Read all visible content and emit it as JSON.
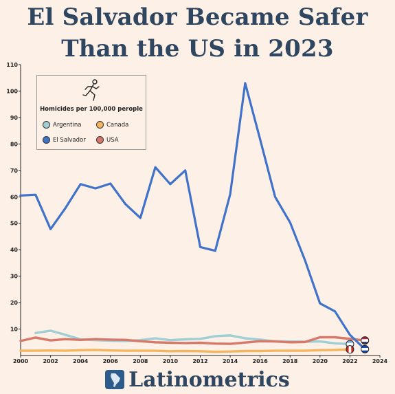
{
  "title_line1": "El Salvador Became Safer",
  "title_line2": "Than the US in 2023",
  "brand": "Latinometrics",
  "chart_data": {
    "type": "line",
    "legend_title": "Homicides per 100,000 perople",
    "legend_position": "top-left",
    "grid": false,
    "xlim": [
      2000,
      2024
    ],
    "ylim": [
      0,
      110
    ],
    "x_ticks": [
      "2000",
      "2002",
      "2004",
      "2006",
      "2008",
      "2010",
      "2012",
      "2014",
      "2016",
      "2018",
      "2020",
      "2022",
      "2024"
    ],
    "y_ticks": [
      "10",
      "20",
      "30",
      "40",
      "50",
      "60",
      "70",
      "80",
      "90",
      "100",
      "110"
    ],
    "series": [
      {
        "name": "Argentina",
        "color": "#9fcfd4",
        "x": [
          2001,
          2002,
          2003,
          2004,
          2005,
          2006,
          2007,
          2008,
          2009,
          2010,
          2011,
          2012,
          2013,
          2014,
          2015,
          2016,
          2017,
          2018,
          2019,
          2020,
          2021,
          2022
        ],
        "y": [
          8.5,
          9.4,
          7.8,
          6.1,
          5.8,
          5.6,
          5.5,
          5.8,
          6.5,
          5.8,
          6.1,
          6.3,
          7.3,
          7.6,
          6.5,
          6.0,
          5.3,
          5.3,
          5.2,
          5.3,
          4.6,
          4.3
        ]
      },
      {
        "name": "Canada",
        "color": "#f5b55e",
        "x": [
          2000,
          2001,
          2002,
          2003,
          2004,
          2005,
          2006,
          2007,
          2008,
          2009,
          2010,
          2011,
          2012,
          2013,
          2014,
          2015,
          2016,
          2017,
          2018,
          2019,
          2020,
          2021,
          2022
        ],
        "y": [
          1.8,
          1.8,
          1.9,
          1.8,
          2.0,
          2.1,
          1.9,
          1.8,
          1.8,
          1.8,
          1.6,
          1.7,
          1.6,
          1.4,
          1.5,
          1.7,
          1.7,
          1.8,
          1.8,
          1.8,
          2.0,
          2.1,
          2.3
        ]
      },
      {
        "name": "El Salvador",
        "color": "#3f72c8",
        "x": [
          2000,
          2001,
          2002,
          2003,
          2004,
          2005,
          2006,
          2007,
          2008,
          2009,
          2010,
          2011,
          2012,
          2013,
          2014,
          2015,
          2016,
          2017,
          2018,
          2019,
          2020,
          2021,
          2022,
          2023
        ],
        "y": [
          60.5,
          60.8,
          47.8,
          55.8,
          64.8,
          63.2,
          65.0,
          57.3,
          52.0,
          71.2,
          64.8,
          70.0,
          41.0,
          39.6,
          61.0,
          103.0,
          81.7,
          60.0,
          50.3,
          36.0,
          19.7,
          16.7,
          7.8,
          2.4
        ]
      },
      {
        "name": "USA",
        "color": "#d6786a",
        "x": [
          2000,
          2001,
          2002,
          2003,
          2004,
          2005,
          2006,
          2007,
          2008,
          2009,
          2010,
          2011,
          2012,
          2013,
          2014,
          2015,
          2016,
          2017,
          2018,
          2019,
          2020,
          2021,
          2022,
          2023
        ],
        "y": [
          5.5,
          6.8,
          5.7,
          6.2,
          5.9,
          6.2,
          6.0,
          5.9,
          5.4,
          5.0,
          4.8,
          4.7,
          4.8,
          4.5,
          4.4,
          4.9,
          5.4,
          5.3,
          5.0,
          5.1,
          6.9,
          6.9,
          6.3,
          5.7
        ]
      }
    ]
  }
}
